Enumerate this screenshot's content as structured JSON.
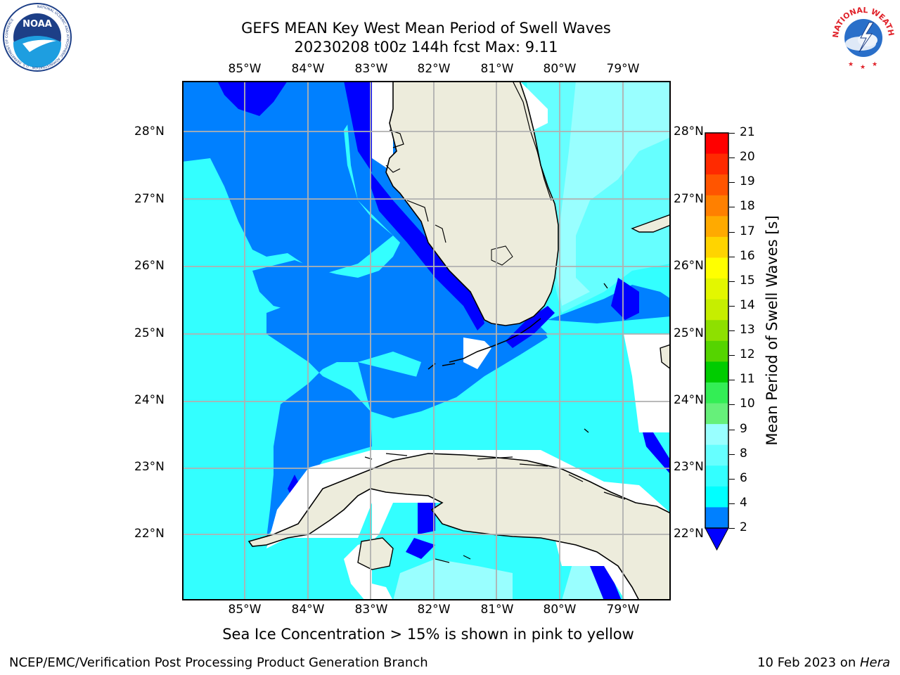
{
  "header": {
    "title_line1": "GEFS MEAN Key West Mean Period of Swell Waves",
    "title_line2": "20230208 t00z 144h fcst   Max: 9.11"
  },
  "logos": {
    "left": {
      "name": "noaa-logo",
      "text": "NOAA",
      "ring_text": "NATIONAL OCEANIC AND ATMOSPHERIC ADMINISTRATION · U.S. DEPARTMENT OF COMMERCE"
    },
    "right": {
      "name": "nws-logo",
      "ring_text": "NATIONAL WEATHER SERVICE"
    }
  },
  "map": {
    "projection": "lat-lon",
    "lon_range": [
      -86,
      -78.3
    ],
    "lat_range": [
      21.0,
      28.8
    ],
    "lon_labels": [
      "85°W",
      "84°W",
      "83°W",
      "82°W",
      "81°W",
      "80°W",
      "79°W"
    ],
    "lat_labels": [
      "28°N",
      "27°N",
      "26°N",
      "25°N",
      "24°N",
      "23°N",
      "22°N"
    ],
    "grid": true,
    "land_color": "#edecdc",
    "coastline_color": "#000000"
  },
  "colorbar": {
    "label": "Mean Period of Swell Waves [s]",
    "ticks": [
      "21",
      "20",
      "19",
      "18",
      "17",
      "16",
      "15",
      "14",
      "13",
      "12",
      "11",
      "10",
      "9",
      "8",
      "6",
      "4",
      "2"
    ],
    "colors": [
      "#ff0000",
      "#ff2a00",
      "#ff5500",
      "#ff8000",
      "#ffaa00",
      "#ffd400",
      "#ffff00",
      "#e3f700",
      "#c6ee00",
      "#8ee000",
      "#55d400",
      "#00cc00",
      "#33ee55",
      "#66f07a",
      "#99ffff",
      "#66ffff",
      "#33ffff",
      "#00ffff",
      "#0080ff"
    ],
    "extend_below_color": "#0000ff"
  },
  "note": "Sea Ice Concentration > 15% is shown in pink to yellow",
  "footer": {
    "left": "NCEP/EMC/Verification Post Processing Product Generation Branch",
    "right_date": "10 Feb 2023 on ",
    "right_machine": "Hera"
  }
}
